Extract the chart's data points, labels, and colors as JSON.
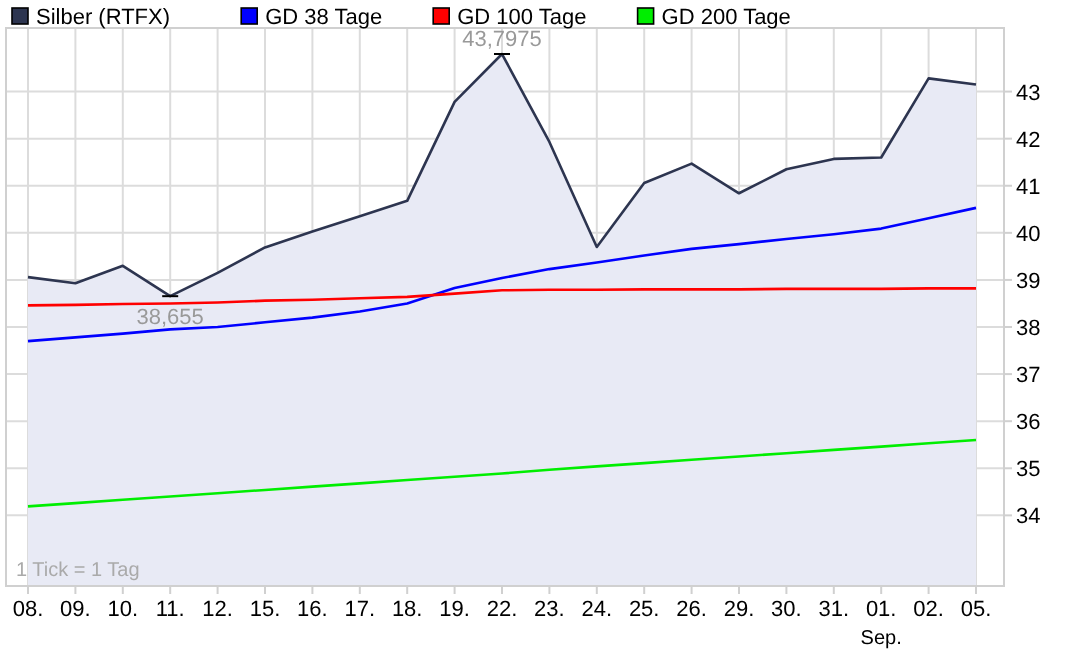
{
  "chart_data": {
    "type": "line",
    "categories": [
      "08.",
      "09.",
      "10.",
      "11.",
      "12.",
      "15.",
      "16.",
      "17.",
      "18.",
      "19.",
      "22.",
      "23.",
      "24.",
      "25.",
      "26.",
      "29.",
      "30.",
      "31.",
      "01. Sep.",
      "02.",
      "05."
    ],
    "series": [
      {
        "name": "Silber (RTFX)",
        "type": "area",
        "color": "#2d3550",
        "values": [
          39.06,
          38.93,
          39.3,
          38.655,
          39.15,
          39.69,
          40.03,
          40.35,
          40.68,
          42.78,
          43.7975,
          41.93,
          39.7,
          41.06,
          41.47,
          40.84,
          41.35,
          41.57,
          41.6,
          43.28,
          43.15
        ]
      },
      {
        "name": "GD 38 Tage",
        "color": "#0000ff",
        "values": [
          37.7,
          37.78,
          37.86,
          37.95,
          38.0,
          38.1,
          38.2,
          38.33,
          38.5,
          38.83,
          39.04,
          39.23,
          39.37,
          39.52,
          39.66,
          39.76,
          39.87,
          39.97,
          40.09,
          40.31,
          40.53
        ]
      },
      {
        "name": "GD 100 Tage",
        "color": "#ff0000",
        "values": [
          38.46,
          38.47,
          38.49,
          38.5,
          38.52,
          38.56,
          38.58,
          38.61,
          38.64,
          38.71,
          38.78,
          38.79,
          38.79,
          38.8,
          38.8,
          38.8,
          38.81,
          38.81,
          38.81,
          38.82,
          38.82
        ]
      },
      {
        "name": "GD 200 Tage",
        "color": "#00ee00",
        "values": [
          34.19,
          34.26,
          34.33,
          34.4,
          34.47,
          34.54,
          34.61,
          34.68,
          34.75,
          34.82,
          34.89,
          34.97,
          35.04,
          35.11,
          35.18,
          35.25,
          35.32,
          35.39,
          35.46,
          35.53,
          35.6
        ]
      }
    ],
    "ylim": [
      32.5,
      44.35
    ],
    "yticks": [
      34,
      35,
      36,
      37,
      38,
      39,
      40,
      41,
      42,
      43
    ],
    "grid": true,
    "legend": "top left",
    "marker": "none",
    "line_style": "solid",
    "annotations": [
      {
        "text": "43,7975",
        "x": "22.",
        "y": 43.7975
      },
      {
        "text": "38,655",
        "x": "11.",
        "y": 38.655
      },
      "1 Tick = 1 Tag"
    ]
  }
}
